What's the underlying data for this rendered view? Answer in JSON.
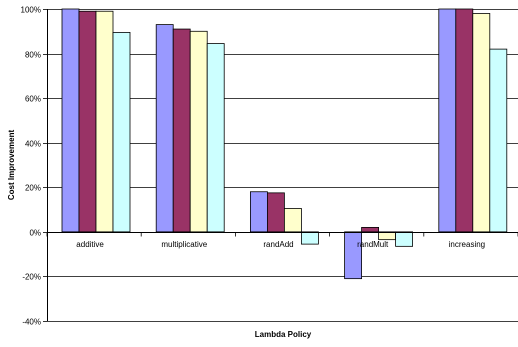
{
  "chart_data": {
    "type": "bar",
    "title": "",
    "xlabel": "Lambda Policy",
    "ylabel": "Cost Improvement",
    "ylim": [
      -40,
      100
    ],
    "y_ticks": [
      -40,
      -20,
      0,
      20,
      40,
      60,
      80,
      100
    ],
    "y_tick_labels": [
      "-40%",
      "-20%",
      "0%",
      "20%",
      "40%",
      "60%",
      "80%",
      "100%"
    ],
    "grid": true,
    "legend": "none",
    "categories": [
      "additive",
      "multiplicative",
      "randAdd",
      "randMult",
      "increasing"
    ],
    "series": [
      {
        "color": "#9999ff",
        "values": [
          100,
          93,
          18,
          -21,
          100
        ]
      },
      {
        "color": "#993366",
        "values": [
          99,
          91,
          17.5,
          2,
          100
        ]
      },
      {
        "color": "#ffffcc",
        "values": [
          99,
          90,
          10.5,
          -3.5,
          98
        ]
      },
      {
        "color": "#ccffff",
        "values": [
          89.5,
          84.5,
          -5.5,
          -6.5,
          82
        ]
      }
    ]
  }
}
